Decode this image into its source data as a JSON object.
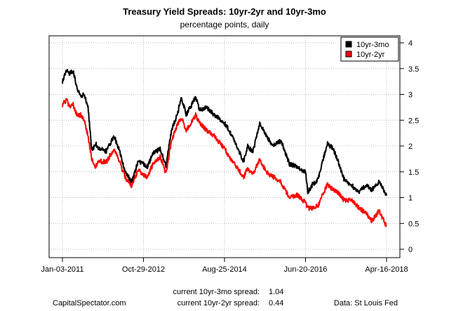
{
  "chart_data": {
    "type": "line",
    "title": "Treasury Yield Spreads: 10yr-2yr and 10yr-3mo",
    "subtitle": "percentage points, daily",
    "xlabel": "",
    "ylabel": "",
    "x_ticks": [
      "Jan-03-2011",
      "Oct-29-2012",
      "Aug-25-2014",
      "Jun-20-2016",
      "Apr-16-2018"
    ],
    "y_ticks": [
      "0",
      "0.5",
      "1",
      "1.5",
      "2",
      "2.5",
      "3",
      "3.5",
      "4"
    ],
    "ylim": [
      0,
      4
    ],
    "xlim": [
      "2011-01-03",
      "2018-04-16"
    ],
    "grid": true,
    "legend_position": "top-right",
    "series": [
      {
        "name": "10yr-3mo",
        "color": "#000000",
        "points": [
          [
            "2011-01-03",
            3.25
          ],
          [
            "2011-02-10",
            3.5
          ],
          [
            "2011-03-01",
            3.4
          ],
          [
            "2011-04-01",
            3.45
          ],
          [
            "2011-05-01",
            3.15
          ],
          [
            "2011-06-01",
            2.95
          ],
          [
            "2011-07-01",
            3.0
          ],
          [
            "2011-08-01",
            2.75
          ],
          [
            "2011-09-01",
            1.9
          ],
          [
            "2011-10-01",
            2.05
          ],
          [
            "2011-11-01",
            1.95
          ],
          [
            "2012-01-01",
            1.9
          ],
          [
            "2012-03-01",
            2.2
          ],
          [
            "2012-04-15",
            1.9
          ],
          [
            "2012-06-01",
            1.5
          ],
          [
            "2012-07-25",
            1.3
          ],
          [
            "2012-09-15",
            1.7
          ],
          [
            "2012-10-29",
            1.65
          ],
          [
            "2012-12-01",
            1.6
          ],
          [
            "2013-01-15",
            1.85
          ],
          [
            "2013-03-15",
            1.95
          ],
          [
            "2013-05-01",
            1.6
          ],
          [
            "2013-06-15",
            2.3
          ],
          [
            "2013-08-01",
            2.6
          ],
          [
            "2013-09-05",
            2.95
          ],
          [
            "2013-10-15",
            2.6
          ],
          [
            "2013-12-31",
            2.95
          ],
          [
            "2014-02-01",
            2.7
          ],
          [
            "2014-04-01",
            2.75
          ],
          [
            "2014-06-01",
            2.6
          ],
          [
            "2014-08-25",
            2.45
          ],
          [
            "2014-10-15",
            2.25
          ],
          [
            "2015-01-30",
            1.7
          ],
          [
            "2015-03-01",
            2.0
          ],
          [
            "2015-04-15",
            1.9
          ],
          [
            "2015-06-10",
            2.45
          ],
          [
            "2015-08-01",
            2.2
          ],
          [
            "2015-10-01",
            2.0
          ],
          [
            "2015-12-01",
            2.1
          ],
          [
            "2016-02-10",
            1.65
          ],
          [
            "2016-04-15",
            1.6
          ],
          [
            "2016-06-20",
            1.5
          ],
          [
            "2016-07-08",
            1.1
          ],
          [
            "2016-08-15",
            1.25
          ],
          [
            "2016-10-01",
            1.35
          ],
          [
            "2016-12-15",
            2.05
          ],
          [
            "2017-02-01",
            1.95
          ],
          [
            "2017-03-15",
            1.7
          ],
          [
            "2017-05-01",
            1.35
          ],
          [
            "2017-07-01",
            1.25
          ],
          [
            "2017-09-01",
            1.1
          ],
          [
            "2017-11-01",
            1.25
          ],
          [
            "2017-12-15",
            1.15
          ],
          [
            "2018-02-15",
            1.3
          ],
          [
            "2018-03-15",
            1.2
          ],
          [
            "2018-04-16",
            1.04
          ]
        ]
      },
      {
        "name": "10yr-2yr",
        "color": "#ff0000",
        "points": [
          [
            "2011-01-03",
            2.8
          ],
          [
            "2011-02-10",
            2.9
          ],
          [
            "2011-03-01",
            2.75
          ],
          [
            "2011-04-01",
            2.8
          ],
          [
            "2011-05-01",
            2.6
          ],
          [
            "2011-06-01",
            2.6
          ],
          [
            "2011-07-01",
            2.5
          ],
          [
            "2011-08-01",
            2.2
          ],
          [
            "2011-09-01",
            1.75
          ],
          [
            "2011-10-01",
            1.6
          ],
          [
            "2011-11-01",
            1.7
          ],
          [
            "2012-01-01",
            1.7
          ],
          [
            "2012-03-01",
            1.95
          ],
          [
            "2012-04-15",
            1.7
          ],
          [
            "2012-06-01",
            1.4
          ],
          [
            "2012-07-25",
            1.2
          ],
          [
            "2012-09-15",
            1.55
          ],
          [
            "2012-10-29",
            1.45
          ],
          [
            "2012-12-01",
            1.4
          ],
          [
            "2013-01-15",
            1.65
          ],
          [
            "2013-03-15",
            1.8
          ],
          [
            "2013-05-01",
            1.45
          ],
          [
            "2013-06-15",
            2.1
          ],
          [
            "2013-08-01",
            2.4
          ],
          [
            "2013-09-05",
            2.55
          ],
          [
            "2013-10-15",
            2.3
          ],
          [
            "2013-12-31",
            2.6
          ],
          [
            "2014-02-01",
            2.45
          ],
          [
            "2014-04-01",
            2.3
          ],
          [
            "2014-06-01",
            2.2
          ],
          [
            "2014-08-25",
            1.95
          ],
          [
            "2014-10-15",
            1.75
          ],
          [
            "2015-01-30",
            1.4
          ],
          [
            "2015-03-01",
            1.55
          ],
          [
            "2015-04-15",
            1.45
          ],
          [
            "2015-06-10",
            1.75
          ],
          [
            "2015-08-01",
            1.5
          ],
          [
            "2015-10-01",
            1.4
          ],
          [
            "2015-12-01",
            1.3
          ],
          [
            "2016-02-10",
            1.0
          ],
          [
            "2016-04-15",
            1.05
          ],
          [
            "2016-06-20",
            0.9
          ],
          [
            "2016-07-08",
            0.8
          ],
          [
            "2016-08-15",
            0.8
          ],
          [
            "2016-10-01",
            0.85
          ],
          [
            "2016-12-15",
            1.25
          ],
          [
            "2017-02-01",
            1.15
          ],
          [
            "2017-03-15",
            1.1
          ],
          [
            "2017-05-01",
            0.95
          ],
          [
            "2017-07-01",
            0.95
          ],
          [
            "2017-09-01",
            0.8
          ],
          [
            "2017-11-01",
            0.7
          ],
          [
            "2017-12-15",
            0.55
          ],
          [
            "2018-02-15",
            0.75
          ],
          [
            "2018-03-15",
            0.6
          ],
          [
            "2018-04-16",
            0.44
          ]
        ]
      }
    ]
  },
  "footer": {
    "source_left": "CapitalSpectator.com",
    "current_3mo_label": "current 10yr-3mo spread:",
    "current_3mo_value": "1.04",
    "current_2yr_label": "current 10yr-2yr spread:",
    "current_2yr_value": "0.44",
    "source_right": "Data: St Louis Fed"
  }
}
